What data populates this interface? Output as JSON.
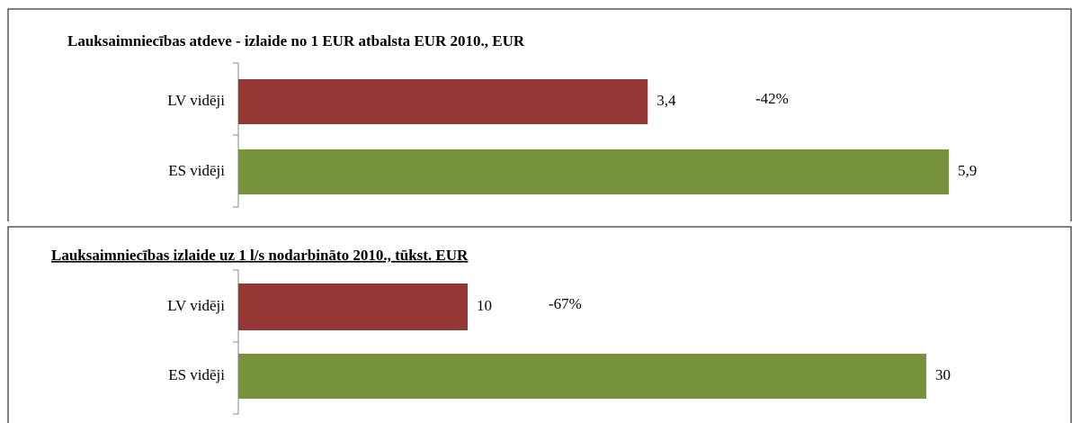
{
  "chart_data": [
    {
      "type": "bar",
      "orientation": "horizontal",
      "title": "Lauksaimniecības atdeve - izlaide no 1 EUR atbalsta EUR 2010., EUR",
      "categories": [
        "LV vidēji",
        "ES vidēji"
      ],
      "values": [
        3.4,
        5.9
      ],
      "value_labels": [
        "3,4",
        "5,9"
      ],
      "colors": [
        "#953735",
        "#77933c"
      ],
      "annotation": "-42%"
    },
    {
      "type": "bar",
      "orientation": "horizontal",
      "title": "Lauksaimniecības izlaide uz 1 l/s nodarbināto 2010., tūkst. EUR",
      "categories": [
        "LV vidēji",
        "ES vidēji"
      ],
      "values": [
        10,
        30
      ],
      "value_labels": [
        "10",
        "30"
      ],
      "colors": [
        "#953735",
        "#77933c"
      ],
      "annotation": "-67%"
    }
  ]
}
